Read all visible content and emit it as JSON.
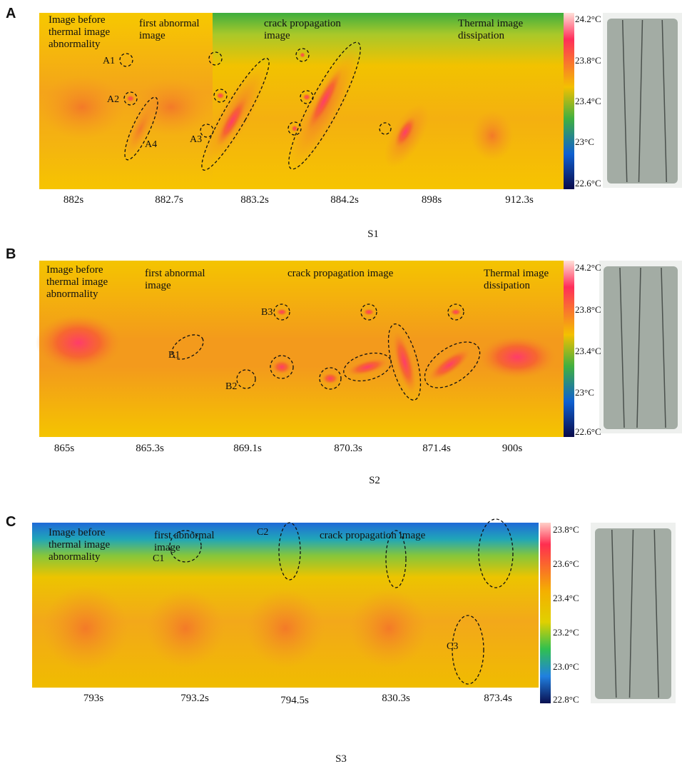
{
  "panels": [
    {
      "letter": "A",
      "stages": [
        "Image before thermal image abnormality",
        "first abnormal image",
        "crack propagation image",
        "Thermal image dissipation"
      ],
      "spots": [
        "A1",
        "A2",
        "A3",
        "A4"
      ],
      "scale": [
        "24.2°C",
        "23.8°C",
        "23.4°C",
        "23°C",
        "22.6°C"
      ],
      "times": [
        "882s",
        "882.7s",
        "883.2s",
        "884.2s",
        "898s",
        "912.3s"
      ],
      "caption": "S1"
    },
    {
      "letter": "B",
      "stages": [
        "Image before thermal image abnormality",
        "first abnormal image",
        "crack propagation image",
        "Thermal image dissipation"
      ],
      "spots": [
        "B1",
        "B2",
        "B3"
      ],
      "scale": [
        "24.2°C",
        "23.8°C",
        "23.4°C",
        "23°C",
        "22.6°C"
      ],
      "times": [
        "865s",
        "865.3s",
        "869.1s",
        "870.3s",
        "871.4s",
        "900s"
      ],
      "caption": "S2"
    },
    {
      "letter": "C",
      "stages": [
        "Image before thermal image abnormality",
        "first abnormal image",
        "crack propagation image"
      ],
      "spots": [
        "C1",
        "C2",
        "C3"
      ],
      "scale": [
        "23.8°C",
        "23.6°C",
        "23.4°C",
        "23.2°C",
        "23.0°C",
        "22.8°C"
      ],
      "times": [
        "793s",
        "793.2s",
        "794.5s",
        "830.3s",
        "873.4s"
      ],
      "caption": "S3"
    }
  ]
}
